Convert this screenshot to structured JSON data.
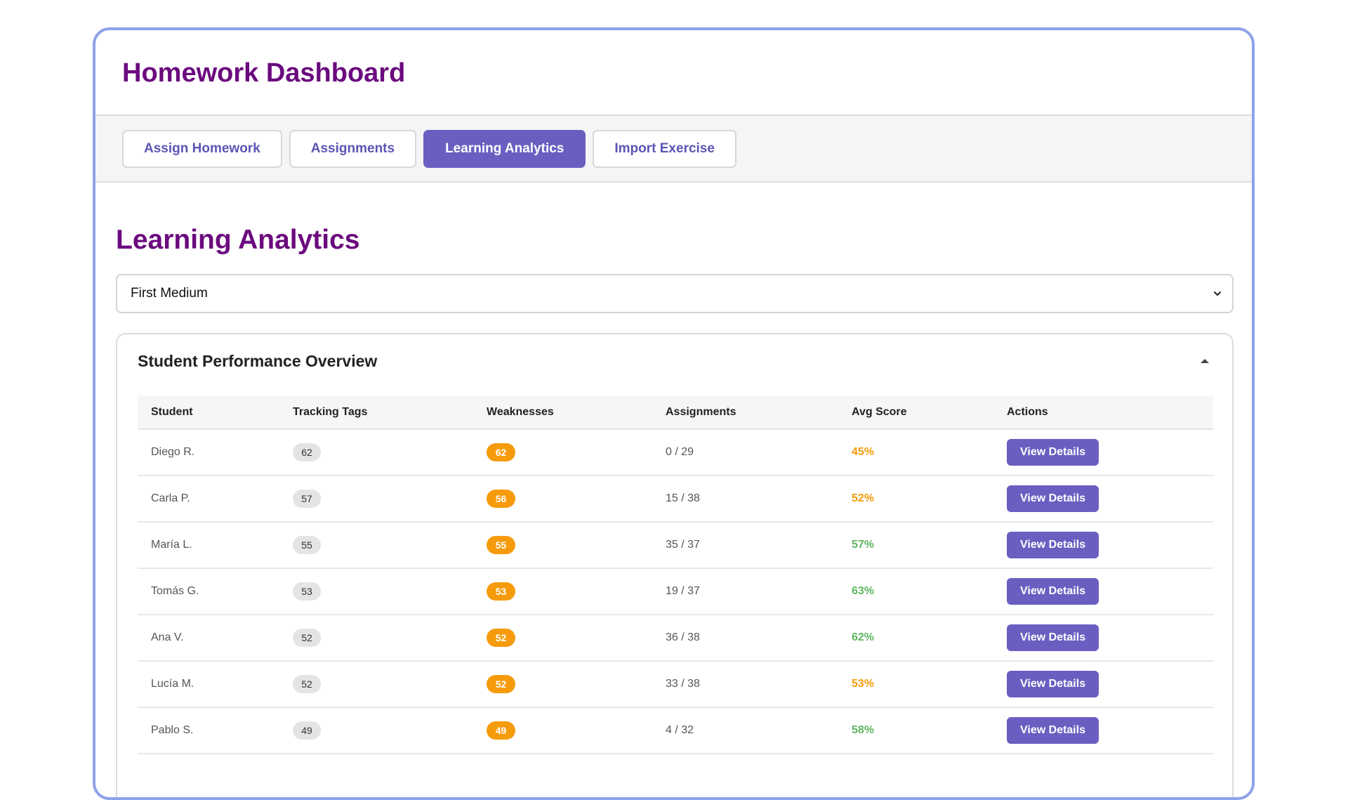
{
  "app": {
    "title": "Homework Dashboard"
  },
  "tabs": [
    {
      "label": "Assign Homework",
      "active": false
    },
    {
      "label": "Assignments",
      "active": false
    },
    {
      "label": "Learning Analytics",
      "active": true
    },
    {
      "label": "Import Exercise",
      "active": false
    }
  ],
  "main": {
    "title": "Learning Analytics",
    "class_select": {
      "value": "First Medium"
    },
    "panel": {
      "title": "Student Performance Overview",
      "columns": [
        "Student",
        "Tracking Tags",
        "Weaknesses",
        "Assignments",
        "Avg Score",
        "Actions"
      ],
      "action_label": "View Details",
      "rows": [
        {
          "student": "Diego R.",
          "tracking_tags": "62",
          "weaknesses": "62",
          "assignments": "0 / 29",
          "avg_score": "45%",
          "score_color": "#f29b0c"
        },
        {
          "student": "Carla P.",
          "tracking_tags": "57",
          "weaknesses": "56",
          "assignments": "15 / 38",
          "avg_score": "52%",
          "score_color": "#f29b0c"
        },
        {
          "student": "María L.",
          "tracking_tags": "55",
          "weaknesses": "55",
          "assignments": "35 / 37",
          "avg_score": "57%",
          "score_color": "#5fb55f"
        },
        {
          "student": "Tomás G.",
          "tracking_tags": "53",
          "weaknesses": "53",
          "assignments": "19 / 37",
          "avg_score": "63%",
          "score_color": "#5fb55f"
        },
        {
          "student": "Ana V.",
          "tracking_tags": "52",
          "weaknesses": "52",
          "assignments": "36 / 38",
          "avg_score": "62%",
          "score_color": "#5fb55f"
        },
        {
          "student": "Lucía M.",
          "tracking_tags": "52",
          "weaknesses": "52",
          "assignments": "33 / 38",
          "avg_score": "53%",
          "score_color": "#f29b0c"
        },
        {
          "student": "Pablo S.",
          "tracking_tags": "49",
          "weaknesses": "49",
          "assignments": "4 / 32",
          "avg_score": "58%",
          "score_color": "#5fb55f"
        }
      ]
    }
  },
  "colors": {
    "brand_purple": "#6b0a7e",
    "accent": "#6a5fc1",
    "card_border": "#8fa2ea",
    "weakness_badge": "#f59b0c",
    "score_good": "#5fb55f",
    "score_warn": "#f29b0c"
  },
  "icons": {
    "select": "chevron-down-icon",
    "collapse": "caret-up-icon"
  }
}
